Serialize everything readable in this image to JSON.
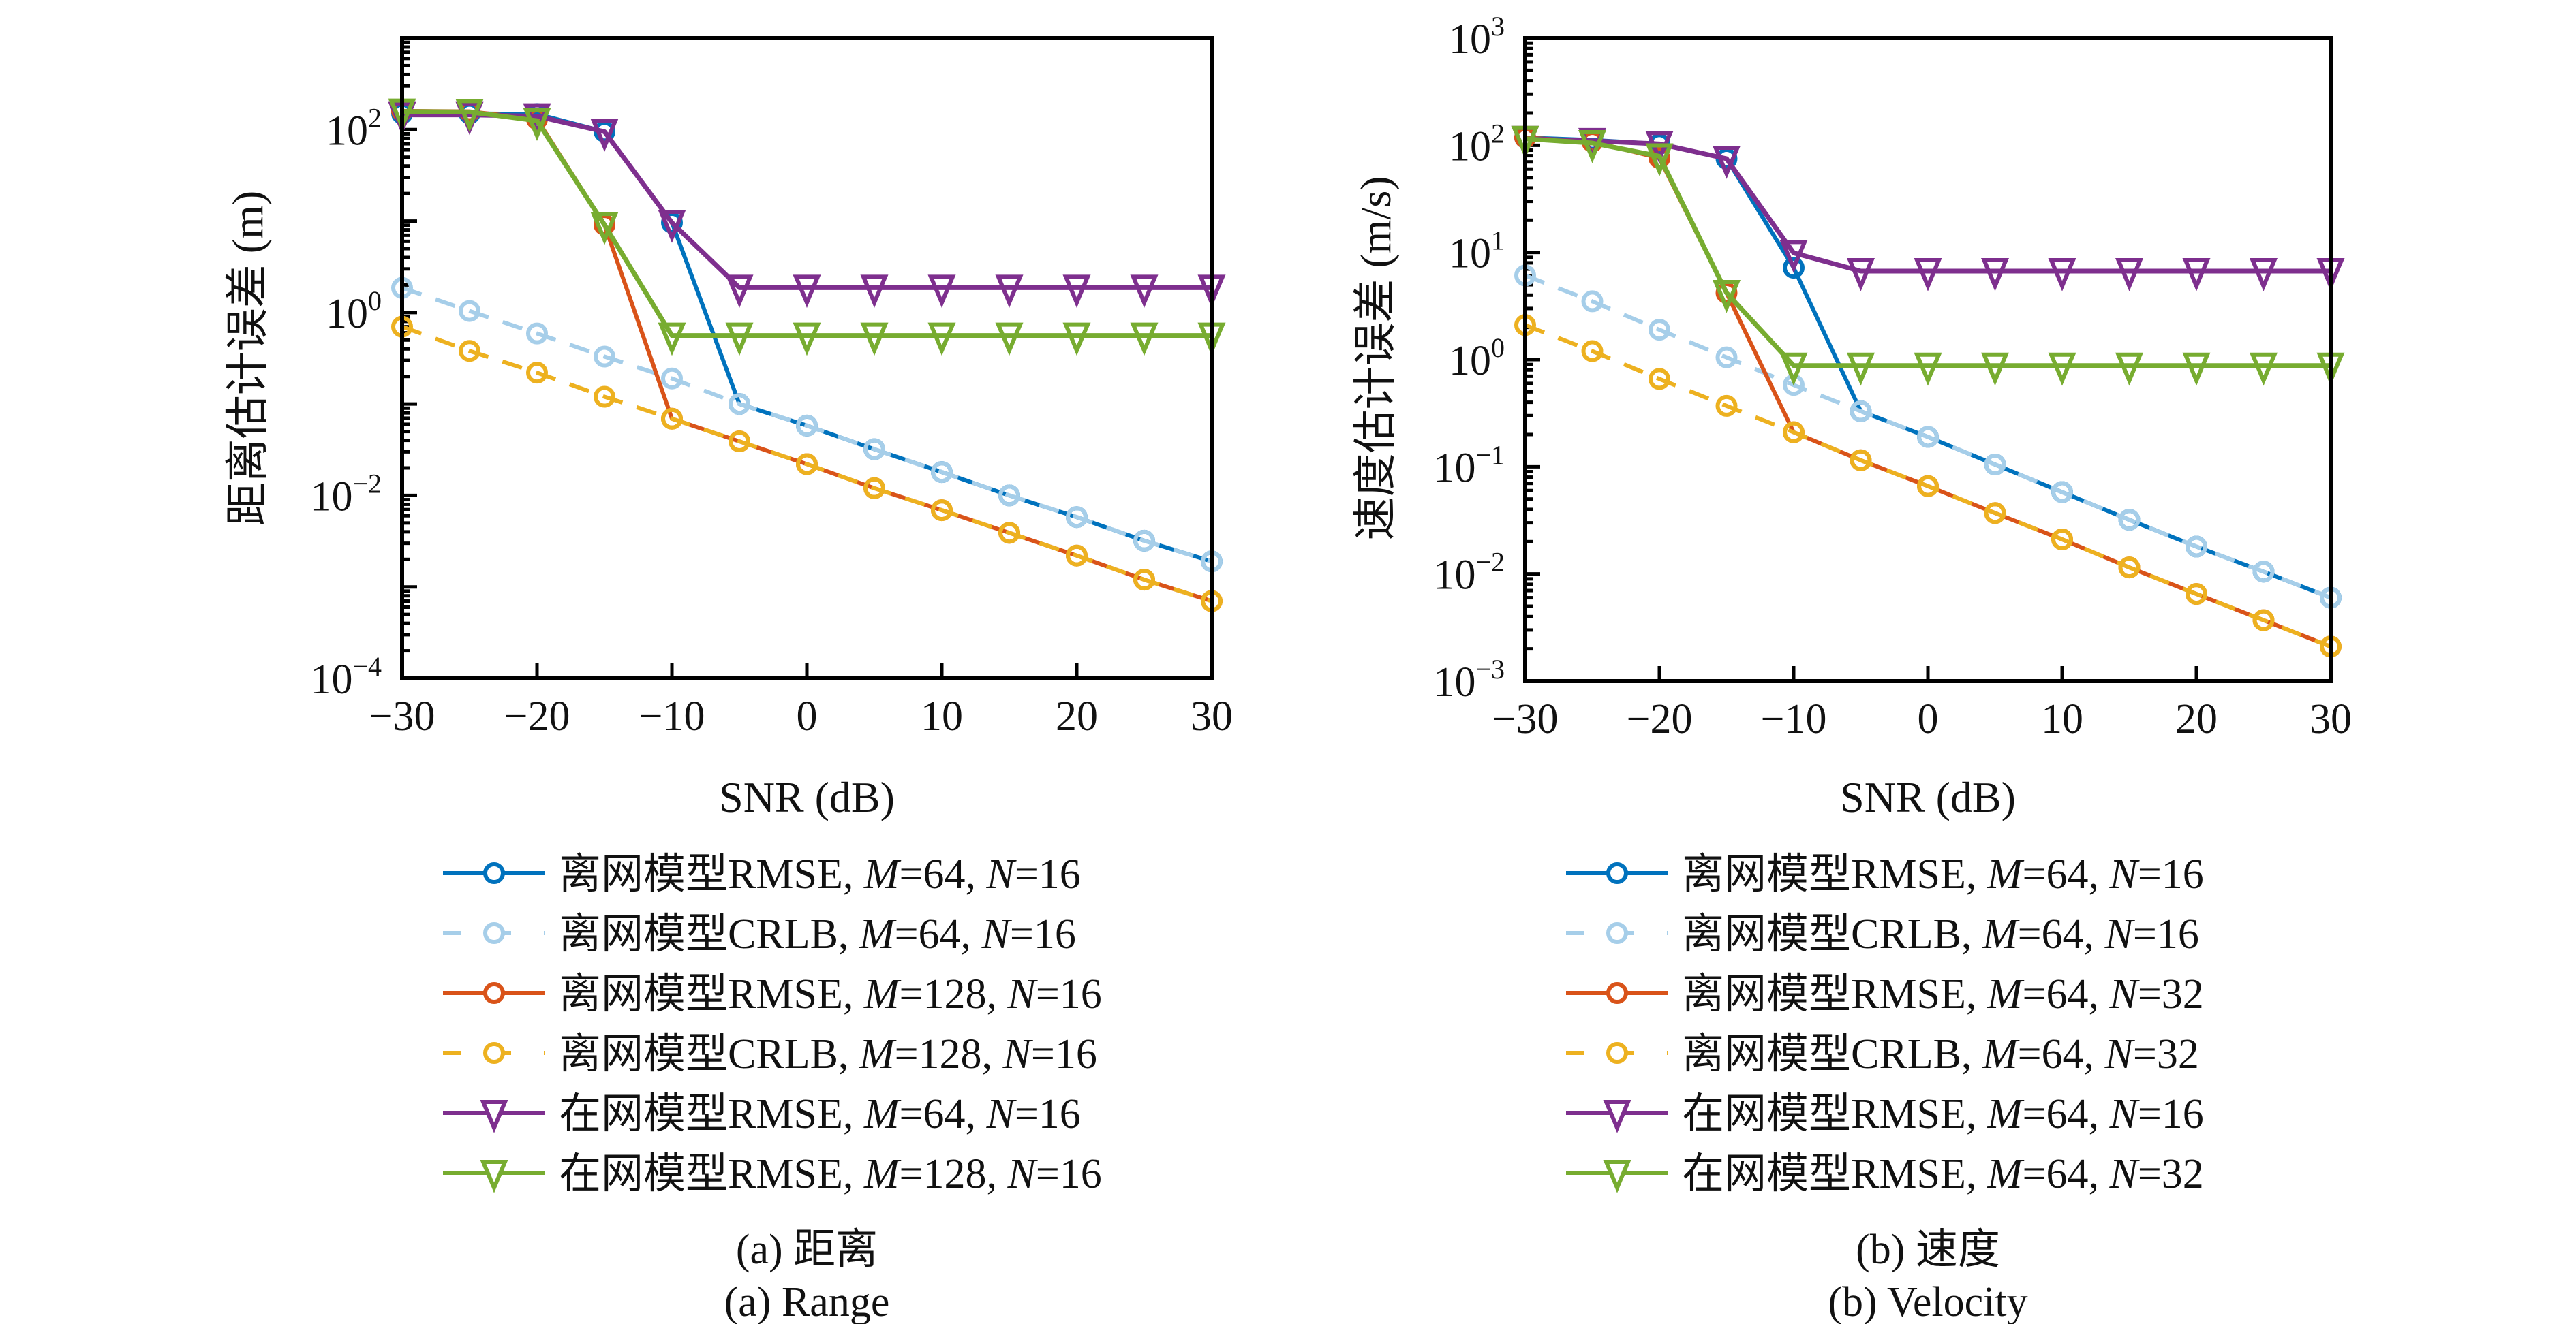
{
  "chart_data": [
    {
      "type": "line",
      "id": "range",
      "title": "",
      "xlabel": "SNR (dB)",
      "ylabel": "距离估计误差 (m)",
      "yscale": "log",
      "xlim": [
        -30,
        30
      ],
      "ylim": [
        0.0001,
        1000
      ],
      "xticks": [
        -30,
        -20,
        -10,
        0,
        10,
        20,
        30
      ],
      "xtick_labels": [
        "−30",
        "−20",
        "−10",
        "0",
        "10",
        "20",
        "30"
      ],
      "yticks": [
        {
          "base": "10",
          "exp": "−4",
          "value": 0.0001
        },
        {
          "base": "10",
          "exp": "−2",
          "value": 0.01
        },
        {
          "base": "10",
          "exp": "0",
          "value": 1
        },
        {
          "base": "10",
          "exp": "2",
          "value": 100
        }
      ],
      "grid": false,
      "legend_position": "below",
      "x": [
        -30,
        -25,
        -20,
        -15,
        -10,
        -5,
        0,
        5,
        10,
        15,
        20,
        25,
        30
      ],
      "series": [
        {
          "name": "离网模型RMSE, M=64, N=16",
          "label_prefix": "离网模型RMSE, ",
          "m": "64",
          "n": "16",
          "color": "#0072BD",
          "dash": false,
          "marker": "circle",
          "values": [
            150,
            150,
            148,
            95,
            9.6,
            0.1,
            0.058,
            0.032,
            0.018,
            0.01,
            0.0058,
            0.0032,
            0.0019
          ]
        },
        {
          "name": "离网模型CRLB, M=64, N=16",
          "label_prefix": "离网模型CRLB, ",
          "m": "64",
          "n": "16",
          "color": "#A6CEE9",
          "dash": true,
          "marker": "circle",
          "values": [
            1.86,
            1.04,
            0.59,
            0.33,
            0.19,
            0.1,
            0.058,
            0.032,
            0.018,
            0.01,
            0.0058,
            0.0032,
            0.0019
          ]
        },
        {
          "name": "离网模型RMSE, M=128, N=16",
          "label_prefix": "离网模型RMSE, ",
          "m": "128",
          "n": "16",
          "color": "#D95319",
          "dash": false,
          "marker": "circle",
          "values": [
            160,
            158,
            130,
            9.1,
            0.069,
            0.039,
            0.022,
            0.012,
            0.0069,
            0.0039,
            0.0022,
            0.0012,
            0.0007
          ]
        },
        {
          "name": "离网模型CRLB, M=128, N=16",
          "label_prefix": "离网模型CRLB, ",
          "m": "128",
          "n": "16",
          "color": "#EDB120",
          "dash": true,
          "marker": "circle",
          "values": [
            0.7,
            0.38,
            0.22,
            0.12,
            0.069,
            0.039,
            0.022,
            0.012,
            0.0069,
            0.0039,
            0.0022,
            0.0012,
            0.0007
          ]
        },
        {
          "name": "在网模型RMSE, M=64, N=16",
          "label_prefix": "在网模型RMSE, ",
          "m": "64",
          "n": "16",
          "color": "#7E2F8E",
          "dash": false,
          "marker": "triangle-down",
          "values": [
            145,
            145,
            140,
            95,
            9.6,
            1.87,
            1.87,
            1.87,
            1.87,
            1.87,
            1.87,
            1.87,
            1.87
          ]
        },
        {
          "name": "在网模型RMSE, M=128, N=16",
          "label_prefix": "在网模型RMSE, ",
          "m": "128",
          "n": "16",
          "color": "#77AC30",
          "dash": false,
          "marker": "triangle-down",
          "values": [
            158,
            156,
            125,
            9.1,
            0.56,
            0.56,
            0.56,
            0.56,
            0.56,
            0.56,
            0.56,
            0.56,
            0.56
          ]
        }
      ],
      "caption_cn": "(a) 距离",
      "caption_en": "(a) Range"
    },
    {
      "type": "line",
      "id": "velocity",
      "title": "",
      "xlabel": "SNR (dB)",
      "ylabel": "速度估计误差 (m/s)",
      "yscale": "log",
      "xlim": [
        -30,
        30
      ],
      "ylim": [
        0.001,
        1000
      ],
      "xticks": [
        -30,
        -20,
        -10,
        0,
        10,
        20,
        30
      ],
      "xtick_labels": [
        "−30",
        "−20",
        "−10",
        "0",
        "10",
        "20",
        "30"
      ],
      "yticks": [
        {
          "base": "10",
          "exp": "−3",
          "value": 0.001
        },
        {
          "base": "10",
          "exp": "−2",
          "value": 0.01
        },
        {
          "base": "10",
          "exp": "−1",
          "value": 0.1
        },
        {
          "base": "10",
          "exp": "0",
          "value": 1
        },
        {
          "base": "10",
          "exp": "1",
          "value": 10
        },
        {
          "base": "10",
          "exp": "2",
          "value": 100
        },
        {
          "base": "10",
          "exp": "3",
          "value": 1000
        }
      ],
      "grid": false,
      "legend_position": "below",
      "x": [
        -30,
        -25,
        -20,
        -15,
        -10,
        -5,
        0,
        5,
        10,
        15,
        20,
        25,
        30
      ],
      "series": [
        {
          "name": "离网模型RMSE, M=64, N=16",
          "label_prefix": "离网模型RMSE, ",
          "m": "64",
          "n": "16",
          "color": "#0072BD",
          "dash": false,
          "marker": "circle",
          "values": [
            118,
            112,
            103,
            75,
            7.2,
            0.33,
            0.19,
            0.105,
            0.058,
            0.032,
            0.018,
            0.0105,
            0.006
          ]
        },
        {
          "name": "离网模型CRLB, M=64, N=16",
          "label_prefix": "离网模型CRLB, ",
          "m": "64",
          "n": "16",
          "color": "#A6CEE9",
          "dash": true,
          "marker": "circle",
          "values": [
            6.1,
            3.5,
            1.9,
            1.05,
            0.58,
            0.33,
            0.19,
            0.105,
            0.058,
            0.032,
            0.018,
            0.0105,
            0.006
          ]
        },
        {
          "name": "离网模型RMSE, M=64, N=32",
          "label_prefix": "离网模型RMSE, ",
          "m": "64",
          "n": "32",
          "color": "#D95319",
          "dash": false,
          "marker": "circle",
          "values": [
            118,
            108,
            76,
            4.2,
            0.21,
            0.115,
            0.066,
            0.037,
            0.021,
            0.0115,
            0.0065,
            0.0037,
            0.0021
          ]
        },
        {
          "name": "离网模型CRLB, M=64, N=32",
          "label_prefix": "离网模型CRLB, ",
          "m": "64",
          "n": "32",
          "color": "#EDB120",
          "dash": true,
          "marker": "circle",
          "values": [
            2.1,
            1.2,
            0.66,
            0.37,
            0.21,
            0.115,
            0.066,
            0.037,
            0.021,
            0.0115,
            0.0065,
            0.0037,
            0.0021
          ]
        },
        {
          "name": "在网模型RMSE, M=64, N=16",
          "label_prefix": "在网模型RMSE, ",
          "m": "64",
          "n": "16",
          "color": "#7E2F8E",
          "dash": false,
          "marker": "triangle-down",
          "values": [
            115,
            110,
            103,
            75,
            9.9,
            6.7,
            6.7,
            6.7,
            6.7,
            6.7,
            6.7,
            6.7,
            6.7
          ]
        },
        {
          "name": "在网模型RMSE, M=64, N=32",
          "label_prefix": "在网模型RMSE, ",
          "m": "64",
          "n": "32",
          "color": "#77AC30",
          "dash": false,
          "marker": "triangle-down",
          "values": [
            115,
            105,
            79,
            4.2,
            0.88,
            0.88,
            0.88,
            0.88,
            0.88,
            0.88,
            0.88,
            0.88,
            0.88
          ]
        }
      ],
      "caption_cn": "(b) 速度",
      "caption_en": "(b) Velocity"
    }
  ]
}
